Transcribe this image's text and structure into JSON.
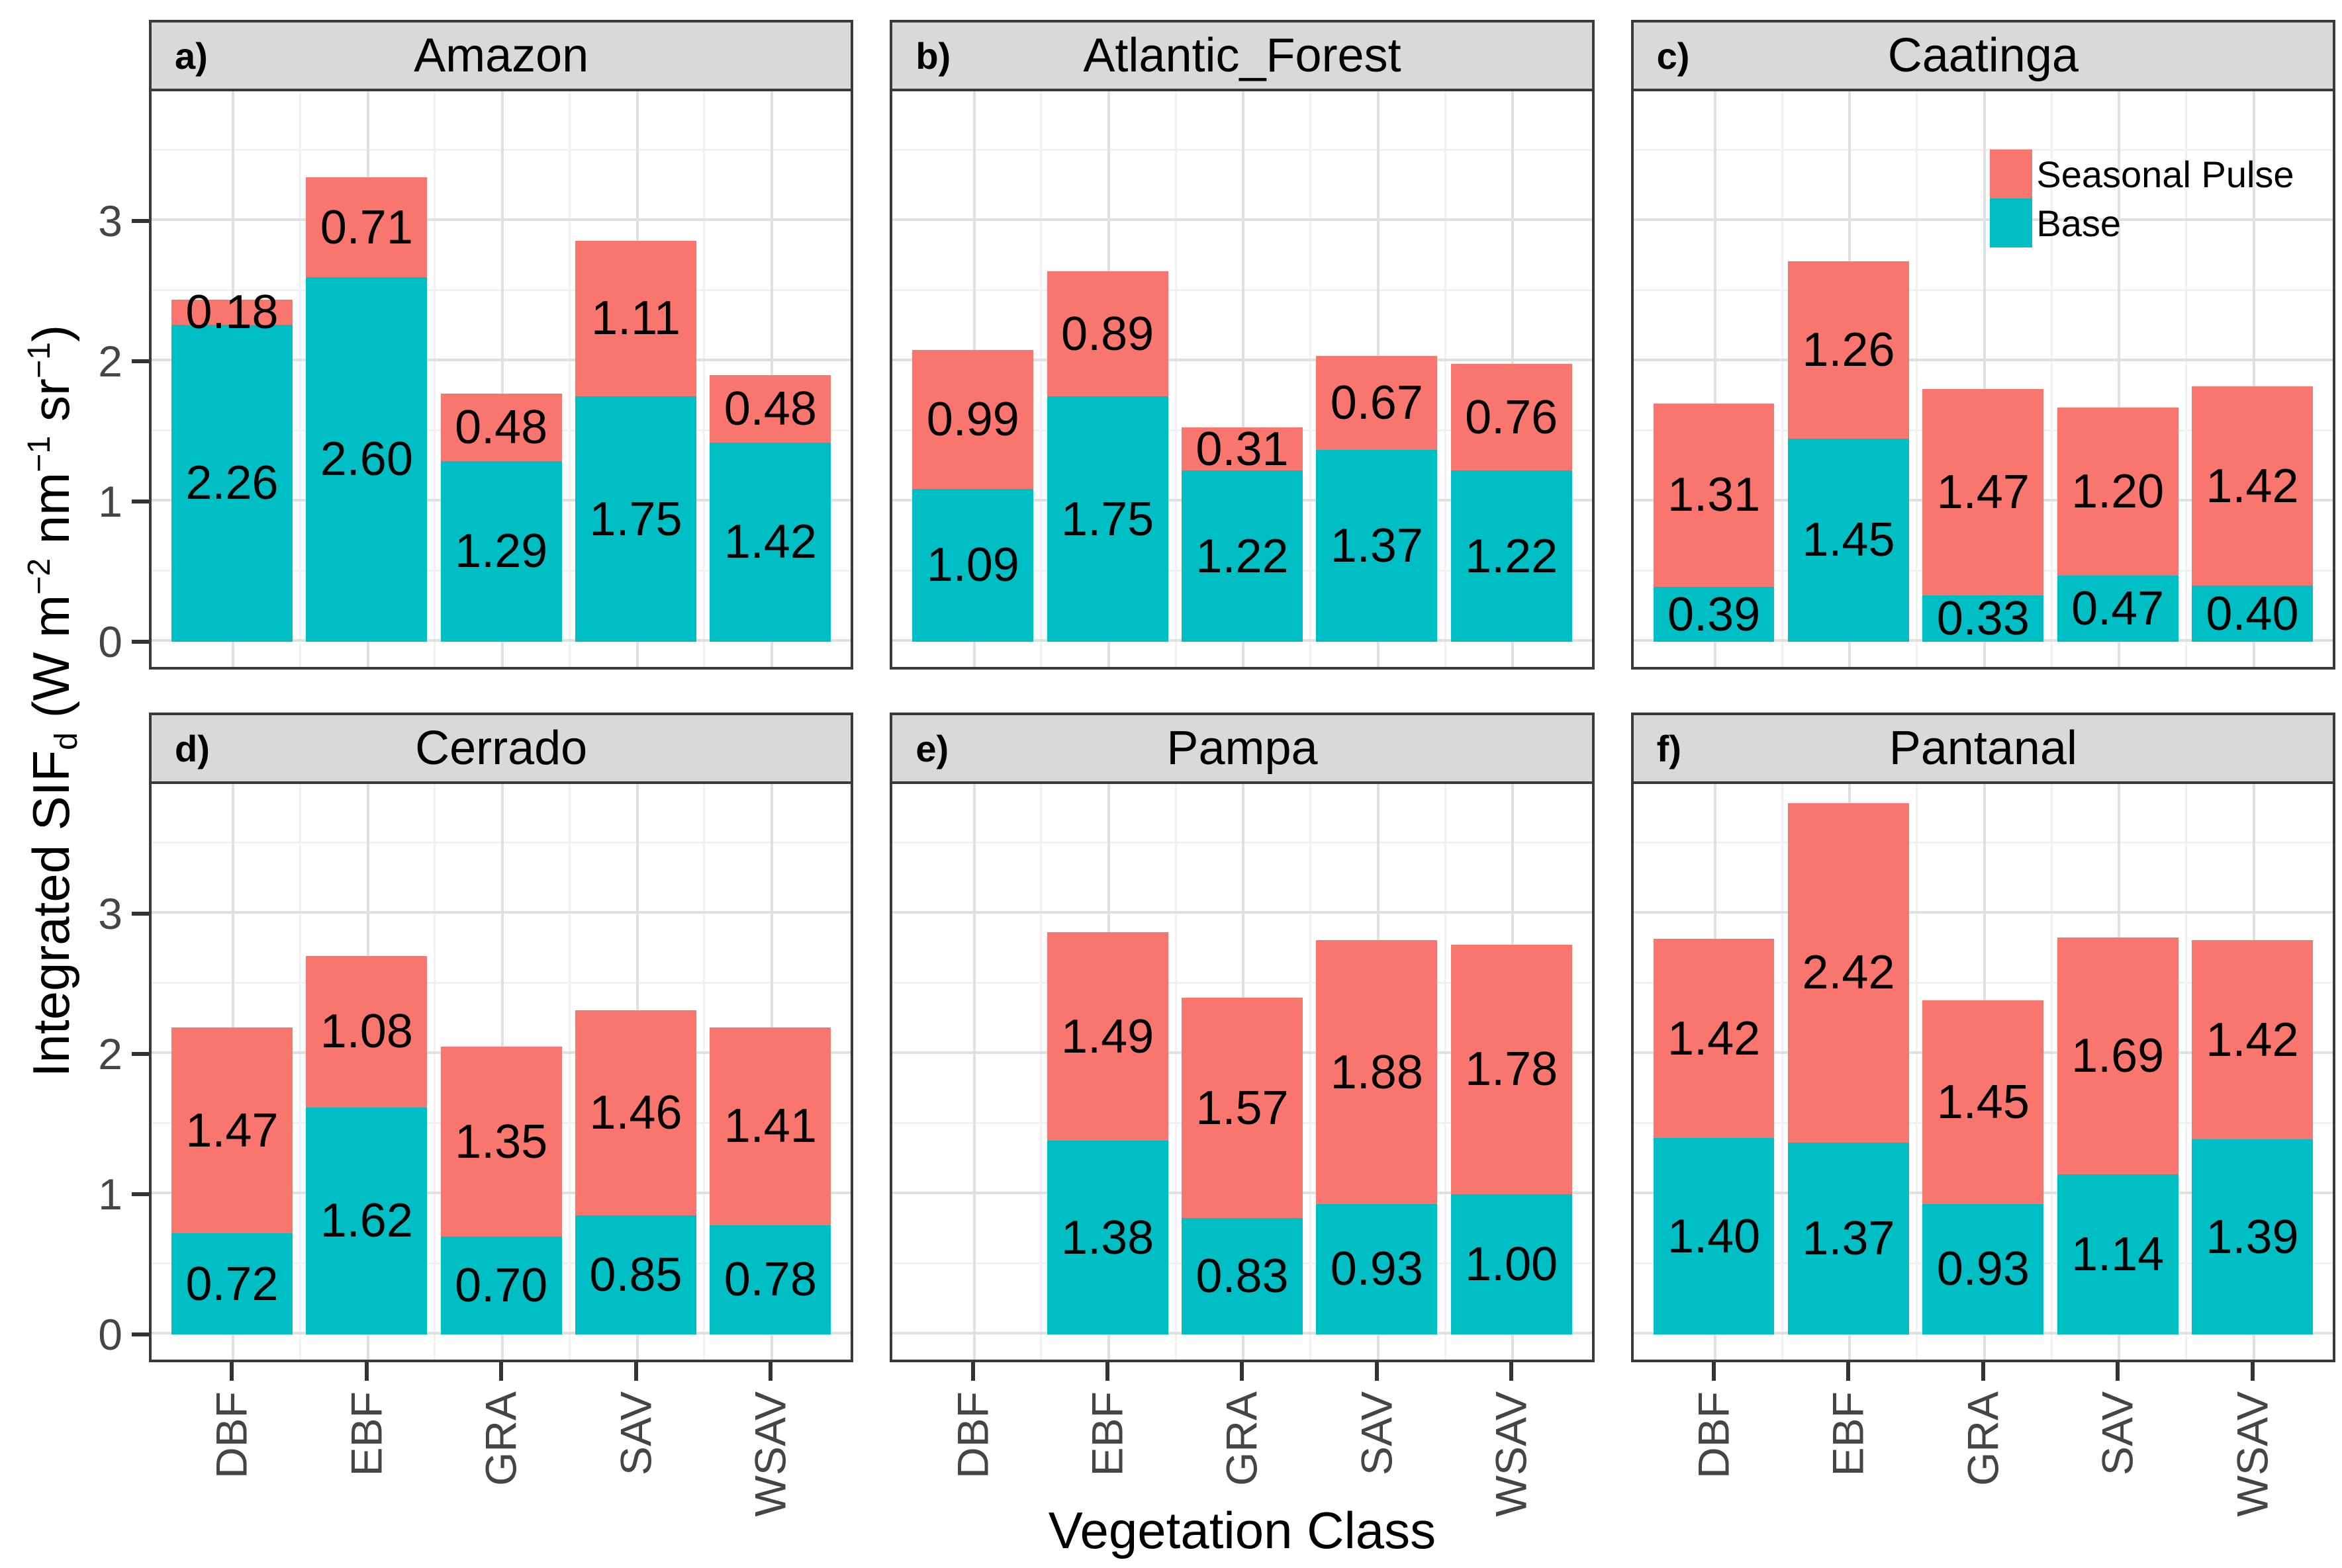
{
  "figure": {
    "x_axis_title": "Vegetation Class",
    "y_axis_title_segments": [
      {
        "text": "Integrated SIF"
      },
      {
        "text": "d",
        "script": "sub"
      },
      {
        "text": " (W m"
      },
      {
        "text": "−2",
        "script": "sup"
      },
      {
        "text": " nm"
      },
      {
        "text": "−1",
        "script": "sup"
      },
      {
        "text": " sr"
      },
      {
        "text": "−1",
        "script": "sup"
      },
      {
        "text": ")"
      }
    ],
    "y_tick_labels": [
      "0",
      "1",
      "2",
      "3"
    ],
    "colors": {
      "seasonal_pulse": "#F8766D",
      "base": "#00BFC4",
      "strip_bg": "#D9D9D9",
      "panel_border": "#3a3a3a",
      "grid_major": "#E0E0E0",
      "grid_minor": "#F1F1F1",
      "tick_mark": "#333333",
      "axis_text": "#454545",
      "bar_label_text": "#000000"
    }
  },
  "chart_data": {
    "type": "bar",
    "stacked": true,
    "facet_layout": "2 rows x 3 cols",
    "title": "",
    "xlabel": "Vegetation Class",
    "ylabel": "Integrated SIF_d (W m^-2 nm^-1 sr^-1)",
    "categories": [
      "DBF",
      "EBF",
      "GRA",
      "SAV",
      "WSAV"
    ],
    "y_ticks": [
      0,
      1,
      2,
      3
    ],
    "ylim": [
      0,
      3.92
    ],
    "grid": true,
    "stack_order_bottom_to_top": [
      "Base",
      "Seasonal Pulse"
    ],
    "legend": {
      "position": "inside facet c, upper right",
      "items": [
        {
          "name": "Seasonal Pulse",
          "color": "#F8766D"
        },
        {
          "name": "Base",
          "color": "#00BFC4"
        }
      ]
    },
    "facets": [
      {
        "tag": "a)",
        "title": "Amazon",
        "base": [
          2.26,
          2.6,
          1.29,
          1.75,
          1.42
        ],
        "pulse": [
          0.18,
          0.71,
          0.48,
          1.11,
          0.48
        ]
      },
      {
        "tag": "b)",
        "title": "Atlantic_Forest",
        "base": [
          1.09,
          1.75,
          1.22,
          1.37,
          1.22
        ],
        "pulse": [
          0.99,
          0.89,
          0.31,
          0.67,
          0.76
        ]
      },
      {
        "tag": "c)",
        "title": "Caatinga",
        "base": [
          0.39,
          1.45,
          0.33,
          0.47,
          0.4
        ],
        "pulse": [
          1.31,
          1.26,
          1.47,
          1.2,
          1.42
        ]
      },
      {
        "tag": "d)",
        "title": "Cerrado",
        "base": [
          0.72,
          1.62,
          0.7,
          0.85,
          0.78
        ],
        "pulse": [
          1.47,
          1.08,
          1.35,
          1.46,
          1.41
        ]
      },
      {
        "tag": "e)",
        "title": "Pampa",
        "base": [
          null,
          1.38,
          0.83,
          0.93,
          1.0
        ],
        "pulse": [
          null,
          1.49,
          1.57,
          1.88,
          1.78
        ]
      },
      {
        "tag": "f)",
        "title": "Pantanal",
        "base": [
          1.4,
          1.37,
          0.93,
          1.14,
          1.39
        ],
        "pulse": [
          1.42,
          2.42,
          1.45,
          1.69,
          1.42
        ]
      }
    ]
  }
}
